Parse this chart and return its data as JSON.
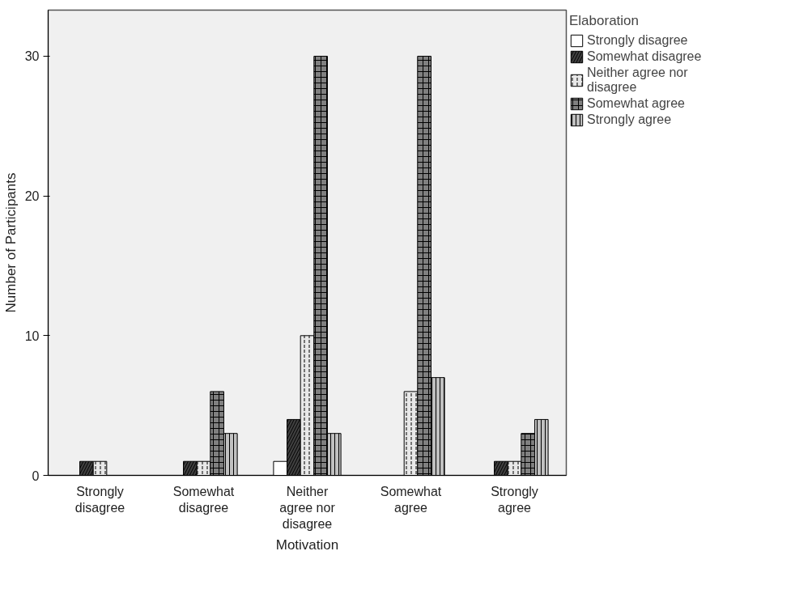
{
  "chart_data": {
    "type": "bar",
    "xlabel": "Motivation",
    "ylabel": "Number of Participants",
    "legend_title": "Elaboration",
    "categories": [
      "Strongly disagree",
      "Somewhat disagree",
      "Neither agree nor disagree",
      "Somewhat agree",
      "Strongly agree"
    ],
    "series": [
      {
        "name": "Strongly disagree",
        "color": "#ffffff",
        "values": [
          0,
          0,
          1,
          0,
          0
        ]
      },
      {
        "name": "Somewhat disagree",
        "color": "#404040",
        "values": [
          1,
          1,
          4,
          0,
          1
        ]
      },
      {
        "name": "Neither agree nor disagree",
        "color": "#e8e8e8",
        "values": [
          1,
          1,
          10,
          6,
          1
        ]
      },
      {
        "name": "Somewhat agree",
        "color": "#808080",
        "values": [
          0,
          6,
          30,
          30,
          3
        ]
      },
      {
        "name": "Strongly agree",
        "color": "#c0c0c0",
        "values": [
          0,
          3,
          3,
          7,
          4
        ]
      }
    ],
    "ylim": [
      0,
      33.3
    ],
    "yticks": [
      0,
      10,
      20,
      30
    ],
    "grid": false,
    "legend": "top right"
  }
}
